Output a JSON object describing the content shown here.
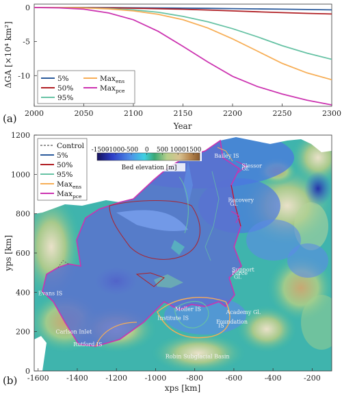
{
  "chart_data": [
    {
      "type": "line",
      "panel_label": "(a)",
      "xlabel": "Year",
      "ylabel": "ΔGA [×10⁴ km²]",
      "xlim": [
        2000,
        2300
      ],
      "ylim": [
        -14.5,
        0.5
      ],
      "x_ticks": [
        "2000",
        "2050",
        "2100",
        "2150",
        "2200",
        "2250",
        "2300"
      ],
      "y_ticks": [
        "0",
        "-5",
        "-10"
      ],
      "legend_placement": "bottom-left",
      "x": [
        2000,
        2025,
        2050,
        2075,
        2100,
        2125,
        2150,
        2175,
        2200,
        2225,
        2250,
        2275,
        2300
      ],
      "series": [
        {
          "name": "5%",
          "color": "#2a5a9b",
          "values": [
            0,
            0,
            0,
            -0.02,
            -0.04,
            -0.06,
            -0.09,
            -0.12,
            -0.16,
            -0.2,
            -0.25,
            -0.3,
            -0.35
          ]
        },
        {
          "name": "50%",
          "color": "#b01e23",
          "values": [
            0,
            0,
            -0.02,
            -0.05,
            -0.1,
            -0.17,
            -0.26,
            -0.37,
            -0.5,
            -0.63,
            -0.75,
            -0.86,
            -0.95
          ]
        },
        {
          "name": "95%",
          "color": "#66c2a4",
          "values": [
            0,
            0,
            -0.05,
            -0.15,
            -0.35,
            -0.7,
            -1.3,
            -2.1,
            -3.1,
            -4.3,
            -5.6,
            -6.7,
            -7.6
          ]
        },
        {
          "name": "Max_ens",
          "color": "#f7ae56",
          "values": [
            0,
            0,
            -0.06,
            -0.2,
            -0.5,
            -1.0,
            -1.8,
            -3.0,
            -4.6,
            -6.4,
            -8.2,
            -9.6,
            -10.6
          ]
        },
        {
          "name": "Max_pce",
          "color": "#cc33b0",
          "values": [
            0,
            -0.05,
            -0.25,
            -0.8,
            -1.8,
            -3.5,
            -5.7,
            -8.0,
            -10.1,
            -11.6,
            -12.7,
            -13.6,
            -14.3
          ]
        }
      ]
    },
    {
      "type": "heatmap",
      "panel_label": "(b)",
      "xlabel": "xps [km]",
      "ylabel": "yps [km]",
      "xlim": [
        -1620,
        -100
      ],
      "ylim": [
        0,
        1200
      ],
      "x_ticks": [
        "-1600",
        "-1400",
        "-1200",
        "-1000",
        "-800",
        "-600",
        "-400",
        "-200"
      ],
      "y_ticks": [
        "0",
        "200",
        "400",
        "600",
        "800",
        "1000",
        "1200"
      ],
      "colorbar": {
        "label": "Bed elevation [m]",
        "ticks": [
          "-1500",
          "-1000",
          "-500",
          "0",
          "500",
          "1000",
          "1500"
        ],
        "range": [
          -1600,
          1700
        ],
        "colors": [
          "#16125e",
          "#2d3fc8",
          "#4e8ee8",
          "#3fd0e2",
          "#3aa874",
          "#b6cf8a",
          "#d8c290",
          "#b98a53",
          "#8a5a2c"
        ]
      },
      "legend": [
        {
          "name": "Control",
          "color": "#555555",
          "dash": true
        },
        {
          "name": "5%",
          "color": "#2a5a9b"
        },
        {
          "name": "50%",
          "color": "#b01e23"
        },
        {
          "name": "95%",
          "color": "#66c2a4"
        },
        {
          "name": "Max_ens",
          "color": "#f7ae56"
        },
        {
          "name": "Max_pce",
          "color": "#cc33b0"
        }
      ],
      "place_labels": [
        {
          "text": "Bailey IS",
          "x": -700,
          "y": 1085
        },
        {
          "text": "Slessor",
          "x": -560,
          "y": 1035
        },
        {
          "text": "Gl.",
          "x": -560,
          "y": 1020
        },
        {
          "text": "Recovery",
          "x": -630,
          "y": 860
        },
        {
          "text": "Gl.",
          "x": -620,
          "y": 840
        },
        {
          "text": "Support",
          "x": -610,
          "y": 505
        },
        {
          "text": "Force",
          "x": -610,
          "y": 488
        },
        {
          "text": "Gl.",
          "x": -600,
          "y": 470
        },
        {
          "text": "Academy Gl.",
          "x": -640,
          "y": 290
        },
        {
          "text": "Foundation",
          "x": -690,
          "y": 240
        },
        {
          "text": "IS",
          "x": -680,
          "y": 222
        },
        {
          "text": "Moller IS",
          "x": -900,
          "y": 305
        },
        {
          "text": "Institute IS",
          "x": -990,
          "y": 260
        },
        {
          "text": "Evans IS",
          "x": -1600,
          "y": 385
        },
        {
          "text": "Carlson Inlet",
          "x": -1510,
          "y": 190
        },
        {
          "text": "Rutford IS",
          "x": -1420,
          "y": 125
        },
        {
          "text": "Robin Subglacial Basin",
          "x": -950,
          "y": 65
        }
      ]
    }
  ],
  "legend_labels": {
    "control": "Control",
    "p5": "5%",
    "p50": "50%",
    "p95": "95%",
    "max": "Max",
    "ens": "ens",
    "pce": "pce"
  }
}
